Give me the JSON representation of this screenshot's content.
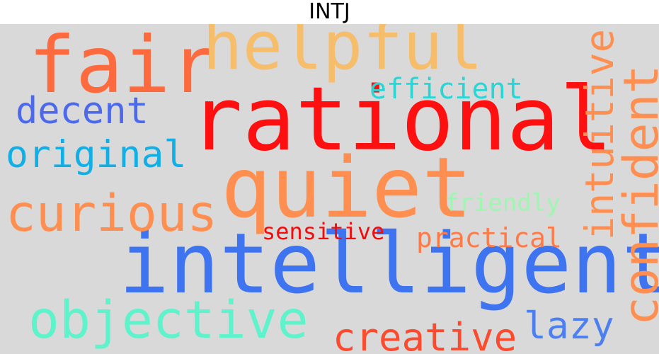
{
  "title": "INTJ",
  "cloud": {
    "words": [
      {
        "text": "rational",
        "color": "#ff1010"
      },
      {
        "text": "intelligent",
        "color": "#3f74f0"
      },
      {
        "text": "quiet",
        "color": "#fe8f50"
      },
      {
        "text": "fair",
        "color": "#fd6a3e"
      },
      {
        "text": "helpful",
        "color": "#f6bd6a"
      },
      {
        "text": "confident",
        "color": "#fe8f50"
      },
      {
        "text": "intuitive",
        "color": "#fe8f50"
      },
      {
        "text": "curious",
        "color": "#fe8f50"
      },
      {
        "text": "objective",
        "color": "#5ff3cb"
      },
      {
        "text": "creative",
        "color": "#fb4a2d"
      },
      {
        "text": "original",
        "color": "#12afe6"
      },
      {
        "text": "decent",
        "color": "#4c69ec"
      },
      {
        "text": "efficient",
        "color": "#28d6d6"
      },
      {
        "text": "lazy",
        "color": "#4c80f0"
      },
      {
        "text": "practical",
        "color": "#fe7a47"
      },
      {
        "text": "friendly",
        "color": "#9ef6b0"
      },
      {
        "text": "sensitive",
        "color": "#f20c0c"
      }
    ]
  }
}
